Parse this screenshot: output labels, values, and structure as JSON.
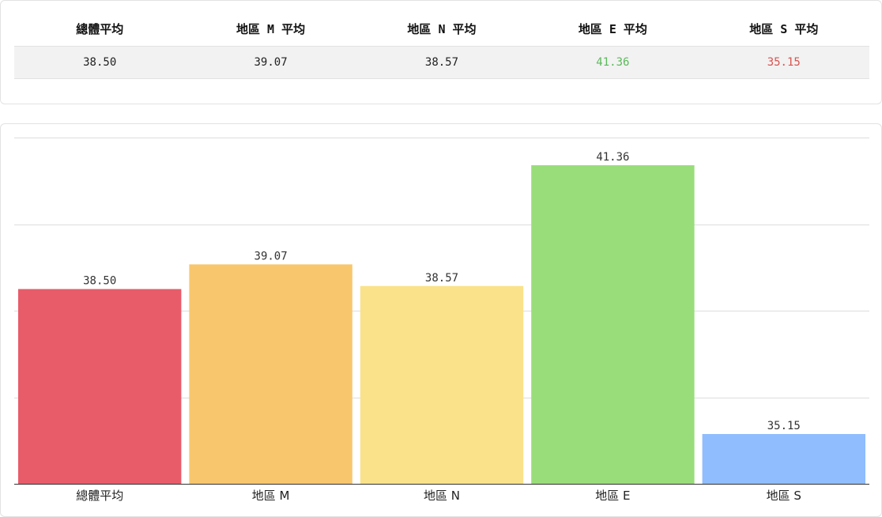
{
  "summary_table": {
    "headers": [
      "總體平均",
      "地區 M 平均",
      "地區 N 平均",
      "地區 E 平均",
      "地區 S 平均"
    ],
    "values": [
      "38.50",
      "39.07",
      "38.57",
      "41.36",
      "35.15"
    ],
    "value_colors": [
      "#222222",
      "#222222",
      "#222222",
      "#5cb85c",
      "#d9534f"
    ]
  },
  "chart_data": {
    "type": "bar",
    "categories": [
      "總體平均",
      "地區 M",
      "地區 N",
      "地區 E",
      "地區 S"
    ],
    "values": [
      38.5,
      39.07,
      38.57,
      41.36,
      35.15
    ],
    "value_labels": [
      "38.50",
      "39.07",
      "38.57",
      "41.36",
      "35.15"
    ],
    "colors": [
      "#e85c6a",
      "#f8c66c",
      "#fae28a",
      "#99dd7a",
      "#8fbdfd"
    ],
    "ylim": [
      34,
      42
    ],
    "grid": true,
    "title": "",
    "xlabel": "",
    "ylabel": ""
  }
}
